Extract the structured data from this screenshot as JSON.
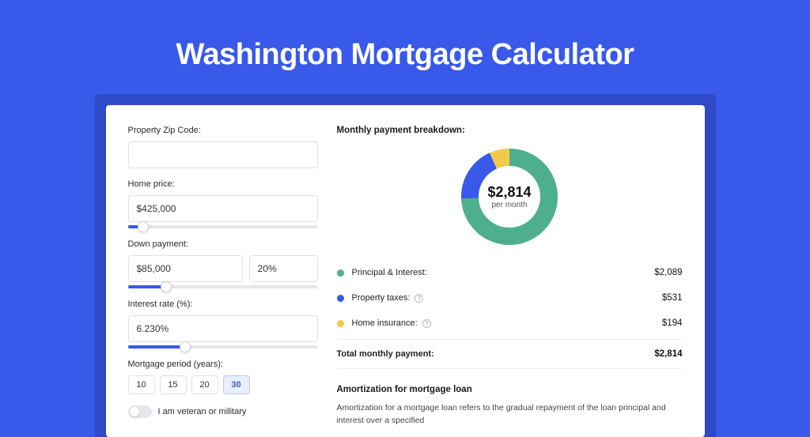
{
  "page": {
    "title": "Washington Mortgage Calculator",
    "background_color": "#3859ea",
    "card_wrap_color": "#2f49c7",
    "card_color": "#ffffff"
  },
  "form": {
    "zip": {
      "label": "Property Zip Code:",
      "value": ""
    },
    "home_price": {
      "label": "Home price:",
      "value": "$425,000",
      "slider_pct": 8
    },
    "down_payment": {
      "label": "Down payment:",
      "amount": "$85,000",
      "percent": "20%",
      "slider_pct": 20
    },
    "interest_rate": {
      "label": "Interest rate (%):",
      "value": "6.230%",
      "slider_pct": 30
    },
    "period": {
      "label": "Mortgage period (years):",
      "options": [
        "10",
        "15",
        "20",
        "30"
      ],
      "selected": "30"
    },
    "veteran": {
      "label": "I am veteran or military",
      "on": false
    }
  },
  "breakdown": {
    "title": "Monthly payment breakdown:",
    "center_amount": "$2,814",
    "center_sub": "per month",
    "donut": {
      "radius": 50,
      "stroke": 22,
      "segments": [
        {
          "key": "pi",
          "value": 2089,
          "color": "#4eaf8c"
        },
        {
          "key": "tax",
          "value": 531,
          "color": "#3859ea"
        },
        {
          "key": "ins",
          "value": 194,
          "color": "#f2c94c"
        }
      ]
    },
    "rows": [
      {
        "key": "pi",
        "label": "Principal & Interest:",
        "value": "$2,089",
        "color": "#4eaf8c",
        "info": false
      },
      {
        "key": "tax",
        "label": "Property taxes:",
        "value": "$531",
        "color": "#3859ea",
        "info": true
      },
      {
        "key": "ins",
        "label": "Home insurance:",
        "value": "$194",
        "color": "#f2c94c",
        "info": true
      }
    ],
    "total": {
      "label": "Total monthly payment:",
      "value": "$2,814"
    }
  },
  "amort": {
    "title": "Amortization for mortgage loan",
    "text": "Amortization for a mortgage loan refers to the gradual repayment of the loan principal and interest over a specified"
  }
}
